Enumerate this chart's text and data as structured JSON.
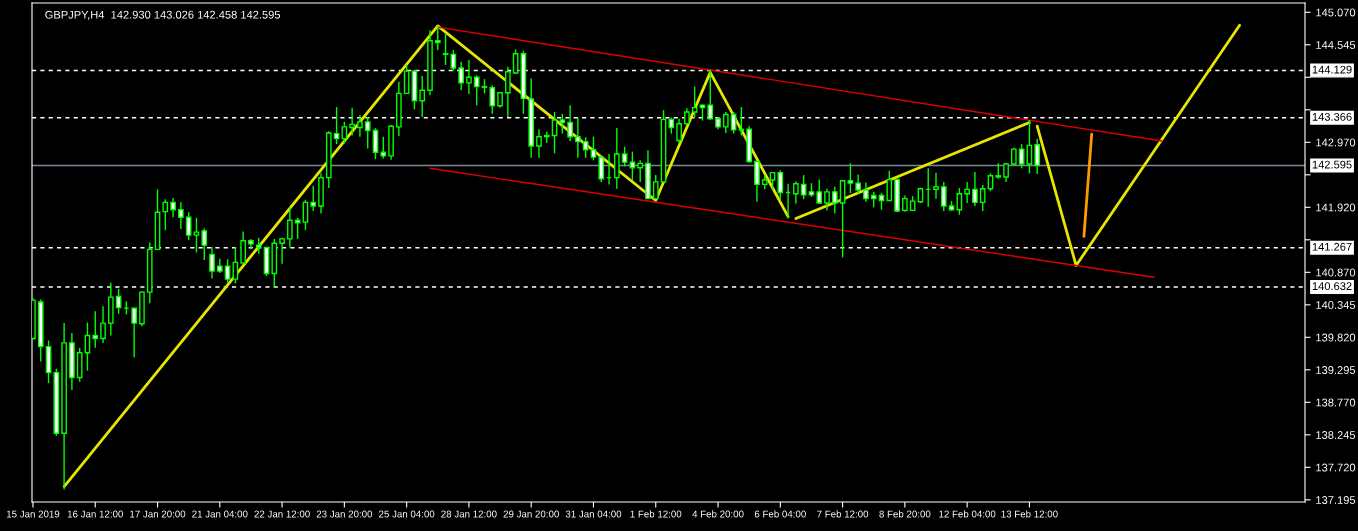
{
  "chart_data": {
    "type": "candlestick",
    "title": "GBPJPY,H4  142.930 143.026 142.458 142.595",
    "color": "#00ff00",
    "categories": [
      "15 Jan 2019",
      null,
      null,
      null,
      null,
      null,
      null,
      null,
      "16 Jan 12:00",
      null,
      null,
      null,
      null,
      null,
      null,
      null,
      "17 Jan 20:00",
      null,
      null,
      null,
      null,
      null,
      null,
      null,
      "21 Jan 04:00",
      null,
      null,
      null,
      null,
      null,
      null,
      null,
      "22 Jan 12:00",
      null,
      null,
      null,
      null,
      null,
      null,
      null,
      "23 Jan 20:00",
      null,
      null,
      null,
      null,
      null,
      null,
      null,
      "25 Jan 04:00",
      null,
      null,
      null,
      null,
      null,
      null,
      null,
      "28 Jan 12:00",
      null,
      null,
      null,
      null,
      null,
      null,
      null,
      "29 Jan 20:00",
      null,
      null,
      null,
      null,
      null,
      null,
      null,
      "31 Jan 04:00",
      null,
      null,
      null,
      null,
      null,
      null,
      null,
      "1 Feb 12:00",
      null,
      null,
      null,
      null,
      null,
      null,
      null,
      "4 Feb 20:00",
      null,
      null,
      null,
      null,
      null,
      null,
      null,
      "6 Feb 04:00",
      null,
      null,
      null,
      null,
      null,
      null,
      null,
      "7 Feb 12:00",
      null,
      null,
      null,
      null,
      null,
      null,
      null,
      "8 Feb 20:00",
      null,
      null,
      null,
      null,
      null,
      null,
      null,
      "12 Feb 04:00",
      null,
      null,
      null,
      null,
      null,
      null,
      null,
      "13 Feb 12:00",
      null,
      null,
      null,
      null,
      null,
      null,
      null,
      null,
      null,
      null,
      null,
      null,
      null,
      null,
      null,
      null,
      null,
      null,
      null,
      null,
      null,
      null,
      null,
      null,
      null,
      null,
      null,
      null,
      null,
      null,
      null,
      null,
      null,
      null,
      null
    ],
    "ohlc": [
      [
        139.8,
        140.45,
        139.78,
        140.42
      ],
      [
        140.39,
        140.43,
        139.43,
        139.67
      ],
      [
        139.67,
        139.77,
        139.08,
        139.25
      ],
      [
        139.25,
        139.31,
        138.23,
        138.27
      ],
      [
        138.27,
        140.05,
        137.36,
        139.73
      ],
      [
        139.73,
        139.89,
        138.97,
        139.17
      ],
      [
        139.17,
        139.65,
        139.1,
        139.57
      ],
      [
        139.57,
        140.06,
        139.28,
        139.85
      ],
      [
        139.85,
        140.24,
        139.65,
        139.8
      ],
      [
        139.8,
        140.32,
        139.73,
        140.05
      ],
      [
        140.05,
        140.7,
        139.85,
        140.47
      ],
      [
        140.48,
        140.6,
        140.2,
        140.3
      ],
      [
        140.29,
        140.4,
        140.19,
        140.29
      ],
      [
        140.29,
        140.3,
        139.5,
        140.05
      ],
      [
        140.04,
        140.56,
        140.0,
        140.55
      ],
      [
        140.55,
        141.35,
        140.37,
        141.24
      ],
      [
        141.24,
        142.21,
        141.23,
        141.84
      ],
      [
        141.85,
        142.05,
        141.55,
        142.0
      ],
      [
        142.0,
        142.07,
        141.76,
        141.88
      ],
      [
        141.88,
        142.0,
        141.57,
        141.76
      ],
      [
        141.76,
        141.84,
        141.39,
        141.47
      ],
      [
        141.47,
        141.75,
        141.19,
        141.52
      ],
      [
        141.54,
        141.58,
        141.07,
        141.31
      ],
      [
        141.16,
        141.28,
        140.77,
        140.89
      ],
      [
        140.97,
        141.09,
        140.86,
        140.89
      ],
      [
        140.97,
        141.08,
        140.7,
        140.76
      ],
      [
        140.76,
        141.28,
        140.69,
        141.03
      ],
      [
        141.02,
        141.53,
        141.02,
        141.38
      ],
      [
        141.38,
        141.41,
        141.25,
        141.33
      ],
      [
        141.31,
        141.43,
        141.17,
        141.27
      ],
      [
        141.27,
        141.28,
        140.81,
        140.85
      ],
      [
        140.85,
        141.41,
        140.63,
        141.34
      ],
      [
        141.34,
        141.43,
        141.01,
        141.41
      ],
      [
        141.41,
        141.92,
        141.27,
        141.71
      ],
      [
        141.71,
        141.75,
        141.41,
        141.67
      ],
      [
        141.68,
        142.04,
        141.55,
        142.0
      ],
      [
        142.0,
        142.27,
        141.86,
        141.94
      ],
      [
        141.94,
        142.47,
        141.82,
        142.4
      ],
      [
        142.4,
        143.15,
        142.23,
        143.12
      ],
      [
        143.11,
        143.54,
        142.94,
        143.03
      ],
      [
        143.03,
        143.3,
        142.95,
        143.22
      ],
      [
        143.21,
        143.53,
        143.08,
        143.26
      ],
      [
        143.21,
        143.41,
        143.06,
        143.3
      ],
      [
        143.3,
        143.38,
        142.87,
        143.16
      ],
      [
        143.16,
        143.2,
        142.7,
        142.81
      ],
      [
        142.81,
        143.06,
        142.71,
        142.75
      ],
      [
        142.75,
        143.25,
        142.69,
        143.23
      ],
      [
        143.22,
        143.95,
        143.07,
        143.76
      ],
      [
        143.76,
        144.22,
        143.75,
        144.12
      ],
      [
        144.12,
        144.14,
        143.5,
        143.64
      ],
      [
        143.64,
        144.04,
        143.38,
        143.81
      ],
      [
        143.81,
        144.78,
        143.73,
        144.61
      ],
      [
        144.61,
        144.84,
        144.46,
        144.58
      ],
      [
        144.4,
        144.73,
        144.22,
        144.39
      ],
      [
        144.39,
        144.46,
        144.13,
        144.17
      ],
      [
        144.17,
        144.27,
        143.81,
        143.93
      ],
      [
        143.93,
        144.3,
        143.75,
        144.02
      ],
      [
        144.02,
        144.05,
        143.57,
        143.87
      ],
      [
        143.87,
        143.99,
        143.76,
        143.86
      ],
      [
        143.85,
        143.89,
        143.43,
        143.56
      ],
      [
        143.56,
        143.78,
        143.53,
        143.77
      ],
      [
        143.77,
        144.19,
        143.38,
        144.11
      ],
      [
        144.09,
        144.47,
        144.08,
        144.4
      ],
      [
        144.4,
        144.45,
        143.43,
        143.68
      ],
      [
        143.67,
        144.0,
        142.72,
        142.91
      ],
      [
        142.91,
        143.18,
        142.72,
        143.06
      ],
      [
        143.06,
        143.14,
        142.96,
        143.08
      ],
      [
        143.08,
        143.46,
        142.79,
        143.33
      ],
      [
        143.33,
        143.43,
        143.11,
        143.29
      ],
      [
        143.29,
        143.57,
        142.99,
        143.06
      ],
      [
        143.06,
        143.37,
        142.72,
        142.98
      ],
      [
        142.98,
        143.05,
        142.72,
        142.85
      ],
      [
        142.85,
        143.06,
        142.68,
        142.73
      ],
      [
        142.73,
        142.76,
        142.33,
        142.38
      ],
      [
        142.4,
        142.78,
        142.29,
        142.4
      ],
      [
        142.4,
        143.2,
        142.22,
        142.78
      ],
      [
        142.78,
        142.9,
        142.58,
        142.65
      ],
      [
        142.65,
        142.82,
        142.36,
        142.56
      ],
      [
        142.56,
        142.68,
        142.33,
        142.63
      ],
      [
        142.63,
        142.84,
        142.06,
        142.06
      ],
      [
        142.06,
        142.44,
        142.06,
        142.33
      ],
      [
        142.33,
        143.49,
        142.33,
        143.34
      ],
      [
        143.34,
        143.37,
        143.11,
        143.21
      ],
      [
        143.0,
        143.35,
        142.96,
        143.27
      ],
      [
        143.27,
        143.52,
        143.26,
        143.46
      ],
      [
        143.46,
        143.87,
        143.38,
        143.53
      ],
      [
        143.57,
        143.58,
        143.32,
        143.53
      ],
      [
        143.57,
        144.14,
        143.33,
        143.35
      ],
      [
        143.35,
        143.38,
        143.18,
        143.22
      ],
      [
        143.22,
        143.46,
        143.12,
        143.42
      ],
      [
        143.42,
        143.46,
        143.11,
        143.17
      ],
      [
        143.18,
        143.54,
        143.08,
        143.17
      ],
      [
        143.18,
        143.23,
        142.64,
        142.66
      ],
      [
        142.66,
        142.68,
        142.01,
        142.29
      ],
      [
        142.29,
        142.44,
        142.21,
        142.36
      ],
      [
        142.36,
        142.49,
        142.2,
        142.48
      ],
      [
        142.48,
        142.52,
        142.03,
        142.16
      ],
      [
        142.16,
        142.3,
        141.74,
        142.16
      ],
      [
        142.14,
        142.34,
        141.98,
        142.3
      ],
      [
        142.29,
        142.44,
        142.05,
        142.12
      ],
      [
        142.17,
        142.31,
        142.09,
        142.12
      ],
      [
        142.17,
        142.37,
        141.98,
        141.99
      ],
      [
        141.99,
        142.22,
        141.87,
        142.17
      ],
      [
        142.17,
        142.25,
        141.82,
        141.99
      ],
      [
        141.99,
        142.36,
        141.11,
        142.35
      ],
      [
        142.35,
        142.63,
        142.15,
        142.31
      ],
      [
        142.31,
        142.45,
        142.14,
        142.2
      ],
      [
        142.2,
        142.32,
        142.01,
        142.06
      ],
      [
        142.11,
        142.17,
        141.92,
        142.06
      ],
      [
        142.11,
        142.15,
        141.88,
        142.03
      ],
      [
        142.03,
        142.51,
        142.02,
        142.37
      ],
      [
        142.37,
        142.38,
        141.84,
        141.86
      ],
      [
        141.87,
        142.11,
        141.85,
        142.06
      ],
      [
        141.87,
        142.1,
        141.86,
        142.02
      ],
      [
        142.01,
        142.24,
        141.99,
        142.22
      ],
      [
        142.21,
        142.55,
        141.93,
        142.21
      ],
      [
        142.21,
        142.48,
        142.06,
        142.25
      ],
      [
        142.25,
        142.33,
        141.86,
        141.94
      ],
      [
        141.94,
        142.02,
        141.86,
        141.88
      ],
      [
        141.88,
        142.23,
        141.8,
        142.14
      ],
      [
        142.14,
        142.33,
        141.99,
        142.21
      ],
      [
        142.21,
        142.49,
        141.94,
        142.0
      ],
      [
        142.0,
        142.28,
        141.86,
        142.22
      ],
      [
        142.22,
        142.47,
        142.18,
        142.43
      ],
      [
        142.43,
        142.63,
        142.38,
        142.41
      ],
      [
        142.41,
        142.64,
        142.33,
        142.62
      ],
      [
        142.62,
        142.88,
        142.6,
        142.86
      ],
      [
        142.86,
        142.94,
        142.55,
        142.62
      ],
      [
        142.62,
        143.33,
        142.47,
        142.92
      ],
      [
        142.93,
        143.026,
        142.458,
        142.595
      ],
      null,
      null,
      null,
      null,
      null,
      null,
      null,
      null,
      null,
      null,
      null,
      null,
      null,
      null,
      null,
      null,
      null,
      null,
      null,
      null,
      null,
      null,
      null,
      null,
      null,
      null,
      null,
      null,
      null,
      null,
      null,
      null,
      null,
      null
    ],
    "series": [
      {
        "type": "line",
        "color": "#e6e600",
        "values": [
          null,
          null,
          null,
          null,
          137.41,
          null,
          null,
          null,
          null,
          null,
          null,
          null,
          null,
          null,
          null,
          null,
          null,
          null,
          null,
          null,
          null,
          null,
          null,
          null,
          null,
          null,
          null,
          null,
          null,
          null,
          null,
          null,
          null,
          null,
          null,
          null,
          null,
          null,
          null,
          null,
          null,
          null,
          null,
          null,
          null,
          null,
          null,
          null,
          null,
          null,
          null,
          null,
          144.85,
          null,
          null,
          null,
          null,
          null,
          null,
          null,
          null,
          null,
          null,
          null,
          null,
          null,
          null,
          null,
          null,
          null,
          null,
          null,
          null,
          null,
          null,
          null,
          null,
          null,
          null,
          null,
          142.03,
          null,
          null,
          null,
          null,
          null,
          null,
          144.1,
          null,
          null,
          null,
          null,
          null,
          null,
          null,
          null,
          null,
          141.77,
          null,
          null,
          null,
          null,
          null,
          null,
          null,
          null,
          null,
          null,
          null,
          null,
          null,
          null,
          null,
          null,
          null,
          null,
          null,
          null,
          null,
          null,
          null,
          null,
          null,
          null,
          null,
          null,
          null,
          null,
          null,
          null,
          null,
          null,
          null,
          null,
          null,
          null,
          null,
          null,
          null,
          null,
          null,
          null,
          null,
          null,
          null,
          null,
          null,
          null,
          null,
          null,
          null,
          null,
          null,
          null,
          null,
          null,
          null,
          null,
          null,
          null,
          null,
          null,
          null,
          null
        ]
      },
      {
        "type": "line",
        "color": "#e6e600",
        "values": [
          null,
          null,
          null,
          null,
          null,
          null,
          null,
          null,
          null,
          null,
          null,
          null,
          null,
          null,
          null,
          null,
          null,
          null,
          null,
          null,
          null,
          null,
          null,
          null,
          null,
          null,
          null,
          null,
          null,
          null,
          null,
          null,
          null,
          null,
          null,
          null,
          null,
          null,
          null,
          null,
          null,
          null,
          null,
          null,
          null,
          null,
          null,
          null,
          null,
          null,
          null,
          null,
          null,
          null,
          null,
          null,
          null,
          null,
          null,
          null,
          null,
          null,
          null,
          null,
          null,
          null,
          null,
          null,
          null,
          null,
          null,
          null,
          null,
          null,
          null,
          null,
          null,
          null,
          null,
          null,
          null,
          null,
          null,
          null,
          null,
          null,
          null,
          null,
          null,
          null,
          null,
          null,
          null,
          null,
          null,
          null,
          null,
          null,
          141.74,
          null,
          null,
          null,
          null,
          null,
          null,
          null,
          null,
          null,
          null,
          null,
          null,
          null,
          null,
          null,
          null,
          null,
          null,
          null,
          null,
          null,
          null,
          null,
          null,
          null,
          null,
          null,
          null,
          null,
          143.29,
          null,
          null,
          null,
          null,
          null,
          null,
          null,
          null,
          null,
          null,
          null,
          null,
          null,
          null,
          null,
          null,
          null,
          null,
          null,
          null,
          null,
          null,
          null,
          null,
          null,
          null,
          null,
          null,
          null,
          null,
          null,
          null,
          null,
          null,
          null
        ]
      },
      {
        "type": "line",
        "color": "#e6e600",
        "values": [
          null,
          null,
          null,
          null,
          null,
          null,
          null,
          null,
          null,
          null,
          null,
          null,
          null,
          null,
          null,
          null,
          null,
          null,
          null,
          null,
          null,
          null,
          null,
          null,
          null,
          null,
          null,
          null,
          null,
          null,
          null,
          null,
          null,
          null,
          null,
          null,
          null,
          null,
          null,
          null,
          null,
          null,
          null,
          null,
          null,
          null,
          null,
          null,
          null,
          null,
          null,
          null,
          null,
          null,
          null,
          null,
          null,
          null,
          null,
          null,
          null,
          null,
          null,
          null,
          null,
          null,
          null,
          null,
          null,
          null,
          null,
          null,
          null,
          null,
          null,
          null,
          null,
          null,
          null,
          null,
          null,
          null,
          null,
          null,
          null,
          null,
          null,
          null,
          null,
          null,
          null,
          null,
          null,
          null,
          null,
          null,
          null,
          null,
          null,
          null,
          null,
          null,
          null,
          null,
          null,
          null,
          null,
          null,
          null,
          null,
          null,
          null,
          null,
          null,
          null,
          null,
          null,
          null,
          null,
          null,
          null,
          null,
          null,
          null,
          null,
          null,
          null,
          null,
          null,
          143.23,
          null,
          null,
          null,
          null,
          140.98,
          null,
          null,
          null,
          null,
          null,
          null,
          null,
          null,
          null,
          null,
          null,
          null,
          null,
          null,
          null,
          null,
          null,
          null,
          null,
          null,
          144.86,
          null,
          null,
          null,
          null,
          null,
          null,
          null,
          null
        ]
      },
      {
        "type": "line",
        "color": "#ff9900",
        "values": [
          null,
          null,
          null,
          null,
          null,
          null,
          null,
          null,
          null,
          null,
          null,
          null,
          null,
          null,
          null,
          null,
          null,
          null,
          null,
          null,
          null,
          null,
          null,
          null,
          null,
          null,
          null,
          null,
          null,
          null,
          null,
          null,
          null,
          null,
          null,
          null,
          null,
          null,
          null,
          null,
          null,
          null,
          null,
          null,
          null,
          null,
          null,
          null,
          null,
          null,
          null,
          null,
          null,
          null,
          null,
          null,
          null,
          null,
          null,
          null,
          null,
          null,
          null,
          null,
          null,
          null,
          null,
          null,
          null,
          null,
          null,
          null,
          null,
          null,
          null,
          null,
          null,
          null,
          null,
          null,
          null,
          null,
          null,
          null,
          null,
          null,
          null,
          null,
          null,
          null,
          null,
          null,
          null,
          null,
          null,
          null,
          null,
          null,
          null,
          null,
          null,
          null,
          null,
          null,
          null,
          null,
          null,
          null,
          null,
          null,
          null,
          null,
          null,
          null,
          null,
          null,
          null,
          null,
          null,
          null,
          null,
          null,
          null,
          null,
          null,
          null,
          null,
          null,
          null,
          null,
          null,
          null,
          null,
          null,
          null,
          141.45,
          143.1,
          null,
          null,
          null,
          null,
          null,
          null,
          null,
          null,
          null,
          null,
          null,
          null,
          null,
          null,
          null,
          null,
          null,
          null,
          null,
          null,
          null,
          null,
          null,
          null,
          null,
          null,
          null
        ]
      },
      {
        "type": "line",
        "color": "#e00000",
        "values": [
          null,
          null,
          null,
          null,
          null,
          null,
          null,
          null,
          null,
          null,
          null,
          null,
          null,
          null,
          null,
          null,
          null,
          null,
          null,
          null,
          null,
          null,
          null,
          null,
          null,
          null,
          null,
          null,
          null,
          null,
          null,
          null,
          null,
          null,
          null,
          null,
          null,
          null,
          null,
          null,
          null,
          null,
          null,
          null,
          null,
          null,
          null,
          null,
          null,
          null,
          null,
          null,
          144.83,
          null,
          null,
          null,
          null,
          null,
          null,
          null,
          null,
          null,
          null,
          null,
          null,
          null,
          null,
          null,
          null,
          null,
          null,
          null,
          null,
          null,
          null,
          null,
          null,
          null,
          null,
          null,
          null,
          null,
          null,
          null,
          null,
          null,
          null,
          null,
          null,
          null,
          null,
          null,
          null,
          null,
          null,
          null,
          null,
          null,
          null,
          null,
          null,
          null,
          null,
          null,
          null,
          null,
          null,
          null,
          null,
          null,
          null,
          null,
          null,
          null,
          null,
          null,
          null,
          null,
          null,
          null,
          null,
          null,
          null,
          null,
          null,
          null,
          null,
          null,
          null,
          null,
          null,
          null,
          null,
          null,
          null,
          null,
          null,
          null,
          null,
          null,
          null,
          null,
          null,
          null,
          null,
          142.99,
          null,
          null,
          null,
          null,
          null,
          null,
          null,
          null,
          null,
          null,
          null,
          null,
          null,
          null,
          null,
          null,
          null,
          null
        ]
      },
      {
        "type": "line",
        "color": "#e00000",
        "values": [
          null,
          null,
          null,
          null,
          null,
          null,
          null,
          null,
          null,
          null,
          null,
          null,
          null,
          null,
          null,
          null,
          null,
          null,
          null,
          null,
          null,
          null,
          null,
          null,
          null,
          null,
          null,
          null,
          null,
          null,
          null,
          null,
          null,
          null,
          null,
          null,
          null,
          null,
          null,
          null,
          null,
          null,
          null,
          null,
          null,
          null,
          null,
          null,
          null,
          null,
          null,
          142.55,
          null,
          null,
          null,
          null,
          null,
          null,
          null,
          null,
          null,
          null,
          null,
          null,
          null,
          null,
          null,
          null,
          null,
          null,
          null,
          null,
          null,
          null,
          null,
          null,
          null,
          null,
          null,
          null,
          null,
          null,
          null,
          null,
          null,
          null,
          null,
          null,
          null,
          null,
          null,
          null,
          null,
          null,
          null,
          null,
          null,
          null,
          null,
          null,
          null,
          null,
          null,
          null,
          null,
          null,
          null,
          null,
          null,
          null,
          null,
          null,
          null,
          null,
          null,
          null,
          null,
          null,
          null,
          null,
          null,
          null,
          null,
          null,
          null,
          null,
          null,
          null,
          null,
          null,
          null,
          null,
          null,
          null,
          null,
          null,
          null,
          null,
          null,
          null,
          null,
          null,
          null,
          null,
          140.79,
          null,
          null,
          null,
          null,
          null,
          null,
          null,
          null,
          null,
          null,
          null,
          null,
          null,
          null,
          null,
          null,
          null,
          null,
          null
        ]
      }
    ],
    "ylim": [
      137.16,
      145.22
    ],
    "yticks": [
      {
        "value": 137.195,
        "label": "137.195"
      },
      {
        "value": 137.72,
        "label": "137.720"
      },
      {
        "value": 138.245,
        "label": "138.245"
      },
      {
        "value": 138.77,
        "label": "138.770"
      },
      {
        "value": 139.295,
        "label": "139.295"
      },
      {
        "value": 139.82,
        "label": "139.820"
      },
      {
        "value": 140.345,
        "label": "140.345"
      },
      {
        "value": 140.87,
        "label": "140.870"
      },
      {
        "value": 141.395,
        "label": null
      },
      {
        "value": 141.92,
        "label": "141.920"
      },
      {
        "value": 142.445,
        "label": null
      },
      {
        "value": 142.97,
        "label": "142.970"
      },
      {
        "value": 143.495,
        "label": null
      },
      {
        "value": 144.02,
        "label": null
      },
      {
        "value": 144.545,
        "label": "144.545"
      },
      {
        "value": 145.07,
        "label": "145.070"
      }
    ],
    "ref_lines": [
      {
        "axis": "y",
        "value": 144.129,
        "label": "144.129",
        "color": "#ffffff",
        "line_style": "dashed"
      },
      {
        "axis": "y",
        "value": 143.366,
        "label": "143.366",
        "color": "#ffffff",
        "line_style": "dashed"
      },
      {
        "axis": "y",
        "value": 142.595,
        "label": "142.595",
        "color": "#778899",
        "line_style": "solid"
      },
      {
        "axis": "y",
        "value": 141.267,
        "label": "141.267",
        "color": "#ffffff",
        "line_style": "dashed"
      },
      {
        "axis": "y",
        "value": 140.632,
        "label": "140.632",
        "color": "#ffffff",
        "line_style": "dashed"
      }
    ]
  }
}
